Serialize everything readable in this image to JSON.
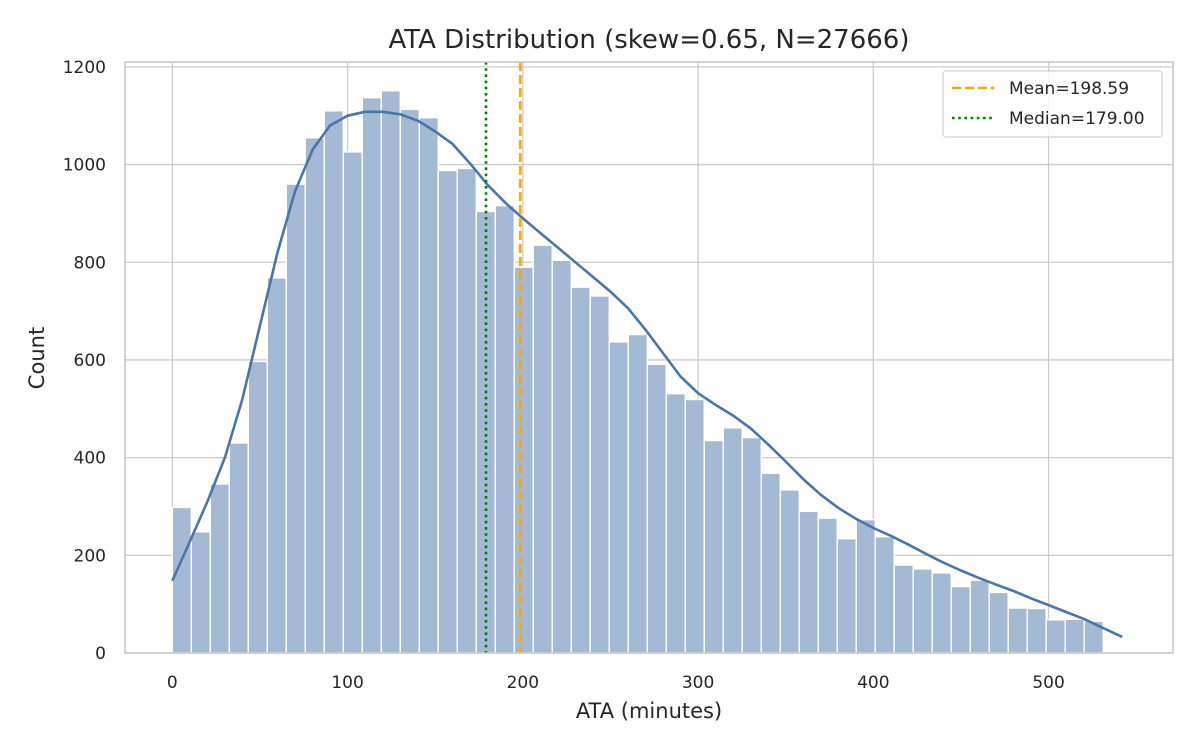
{
  "chart_data": {
    "type": "bar",
    "title": "ATA Distribution (skew=0.65, N=27666)",
    "xlabel": "ATA (minutes)",
    "ylabel": "Count",
    "xlim": [
      -27,
      571
    ],
    "ylim": [
      0,
      1210
    ],
    "xticks": [
      0,
      100,
      200,
      300,
      400,
      500
    ],
    "yticks": [
      0,
      200,
      400,
      600,
      800,
      1000,
      1200
    ],
    "grid": true,
    "bin_start": 0,
    "bin_width": 10.84,
    "histogram_counts": [
      298,
      248,
      346,
      430,
      597,
      768,
      960,
      1055,
      1110,
      1026,
      1137,
      1151,
      1113,
      1096,
      988,
      992,
      904,
      916,
      790,
      835,
      804,
      749,
      731,
      637,
      652,
      591,
      531,
      519,
      435,
      461,
      441,
      368,
      334,
      290,
      276,
      234,
      273,
      238,
      180,
      172,
      164,
      136,
      149,
      124,
      92,
      91,
      68,
      69,
      65
    ],
    "bar_color": "#a4b9d4",
    "kde": {
      "name": "kde",
      "color": "#4a75a8",
      "x": [
        0,
        10,
        20,
        30,
        40,
        50,
        60,
        70,
        80,
        90,
        100,
        110,
        120,
        130,
        140,
        150,
        160,
        170,
        180,
        190,
        200,
        210,
        220,
        230,
        240,
        250,
        260,
        270,
        280,
        290,
        300,
        310,
        320,
        330,
        340,
        350,
        360,
        370,
        380,
        390,
        400,
        410,
        420,
        430,
        440,
        450,
        460,
        470,
        480,
        490,
        500,
        510,
        520,
        530,
        542
      ],
      "y": [
        148,
        228,
        310,
        400,
        520,
        670,
        820,
        945,
        1030,
        1080,
        1100,
        1108,
        1108,
        1103,
        1090,
        1068,
        1042,
        1002,
        958,
        922,
        890,
        860,
        830,
        800,
        770,
        740,
        706,
        662,
        614,
        566,
        532,
        508,
        486,
        460,
        427,
        392,
        356,
        324,
        297,
        275,
        256,
        240,
        222,
        203,
        185,
        169,
        154,
        140,
        127,
        112,
        98,
        84,
        70,
        53,
        33
      ]
    },
    "reference_lines": [
      {
        "name": "Mean=198.59",
        "value": 198.59,
        "color": "#ffa500",
        "style": "dashed"
      },
      {
        "name": "Median=179.00",
        "value": 179.0,
        "color": "#008000",
        "style": "dotted"
      }
    ],
    "legend_position": "top-right"
  }
}
